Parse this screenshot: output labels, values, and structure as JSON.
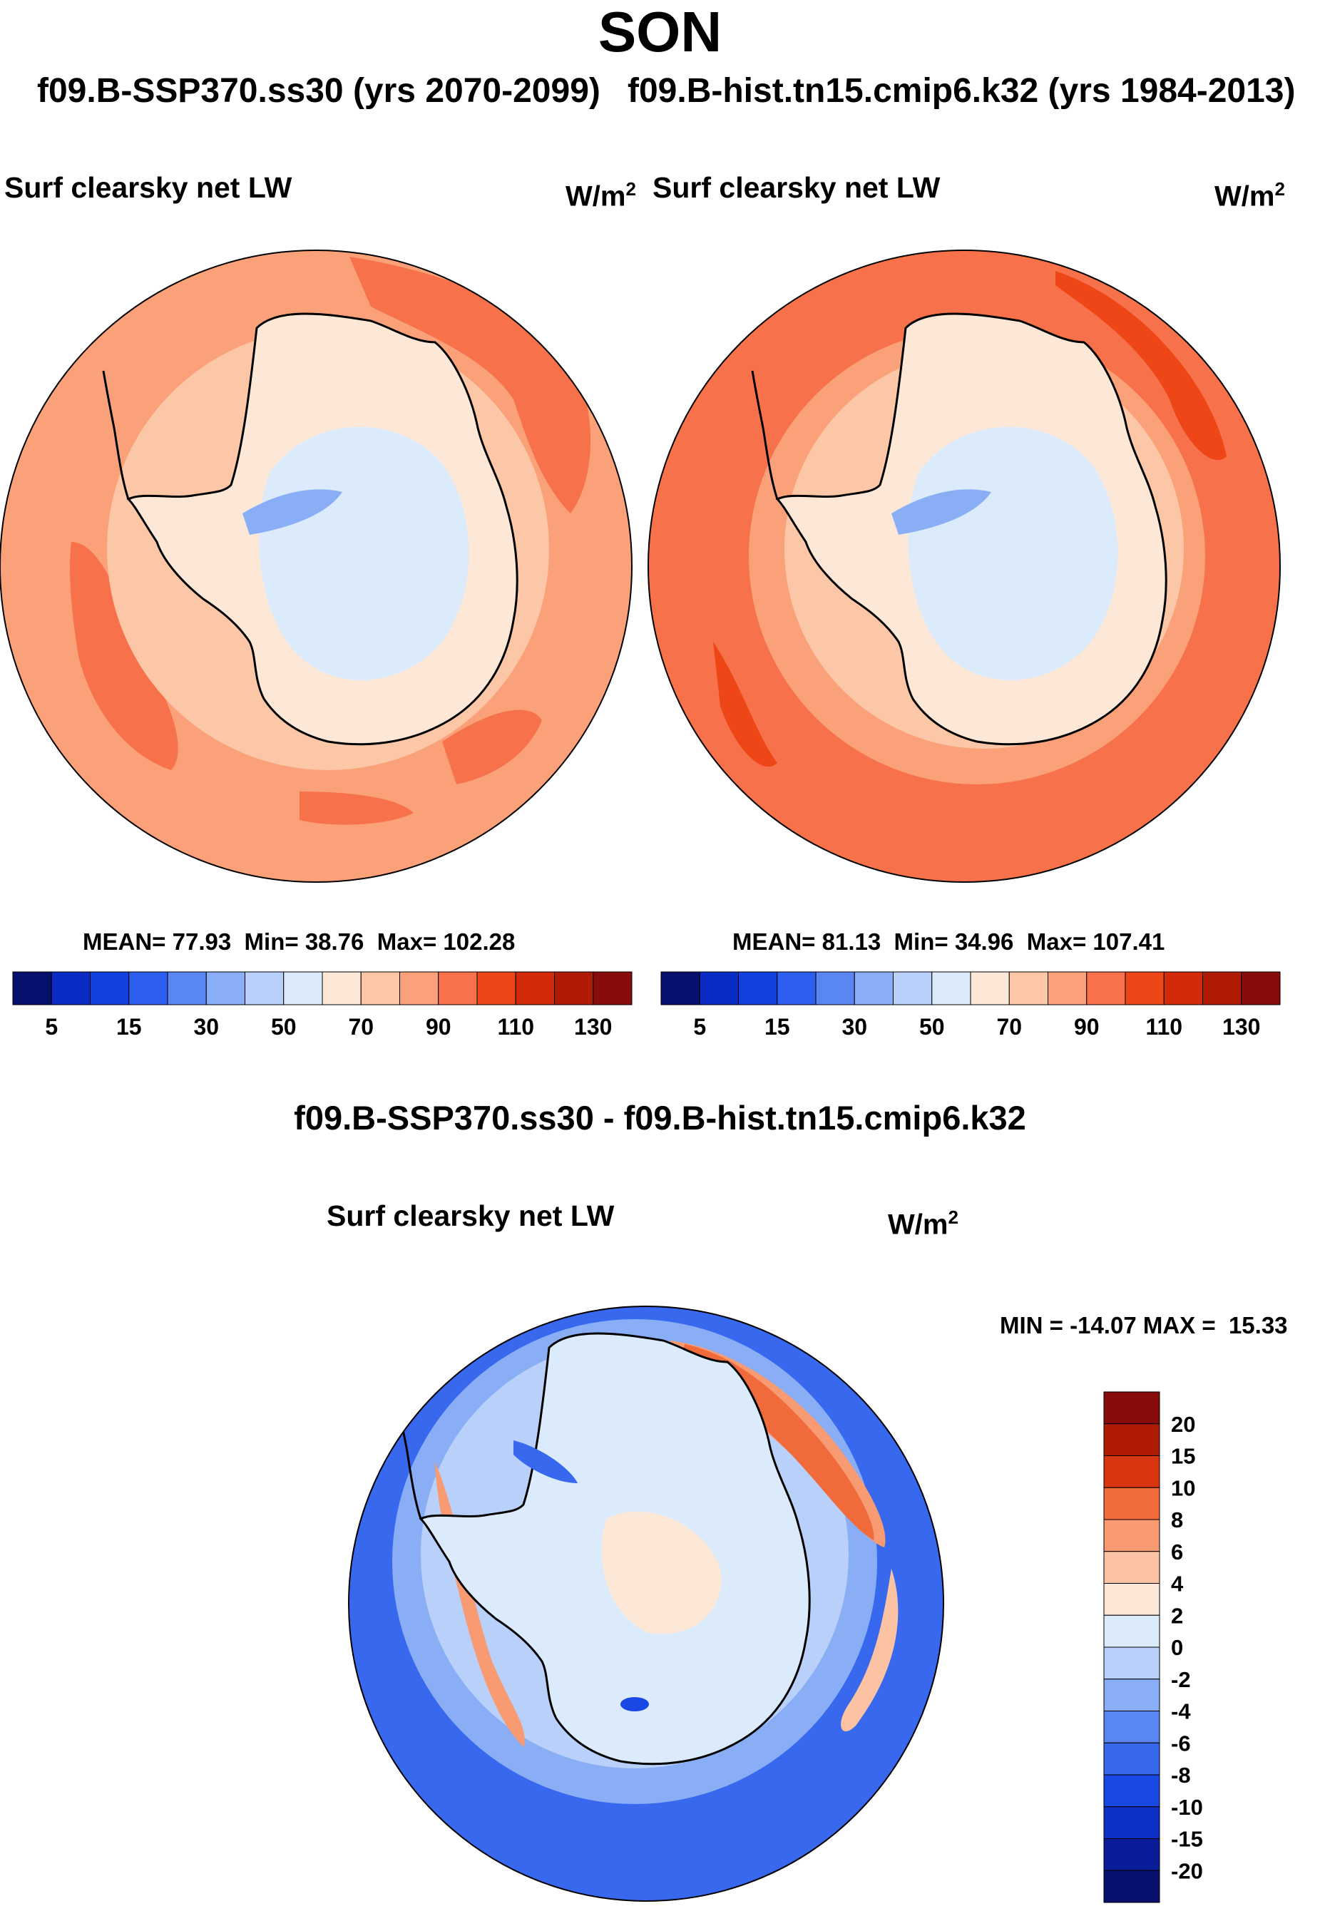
{
  "season": "SON",
  "run_header": {
    "test_case": "f09.B-SSP370.ss30 (yrs 2070-2099)",
    "control_case": "f09.B-hist.tn15.cmip6.k32 (yrs 1984-2013)"
  },
  "panel_left": {
    "variable": "Surf clearsky net LW",
    "units_base": "W/m",
    "units_exp": "2",
    "stats": {
      "mean_label": "MEAN=",
      "mean": "77.93",
      "min_label": "Min=",
      "min": "38.76",
      "max_label": "Max=",
      "max": "102.28"
    }
  },
  "panel_right": {
    "variable": "Surf clearsky net LW",
    "units_base": "W/m",
    "units_exp": "2",
    "stats": {
      "mean_label": "MEAN=",
      "mean": "81.13",
      "min_label": "Min=",
      "min": "34.96",
      "max_label": "Max=",
      "max": "107.41"
    }
  },
  "colorbar_abs": {
    "colors": [
      "#08106e",
      "#0a2ac4",
      "#1240e0",
      "#2e5ef0",
      "#5a86f2",
      "#8aaef5",
      "#b8d0fa",
      "#dcebfc",
      "#fde8d8",
      "#fcc7a6",
      "#fba17a",
      "#f7724a",
      "#ee4616",
      "#d32a0a",
      "#b01b06",
      "#880c0c"
    ],
    "labels": [
      "5",
      "15",
      "30",
      "50",
      "70",
      "90",
      "110",
      "130"
    ]
  },
  "difference": {
    "title": "f09.B-SSP370.ss30 - f09.B-hist.tn15.cmip6.k32",
    "variable": "Surf clearsky net LW",
    "units_base": "W/m",
    "units_exp": "2",
    "minmax": "MIN = -14.07 MAX =  15.33"
  },
  "colorbar_diff": {
    "colors": [
      "#880c0c",
      "#b01b06",
      "#d93510",
      "#f06a3c",
      "#f89a72",
      "#fbc2a4",
      "#fde8d8",
      "#dcebfc",
      "#b8d0fa",
      "#8aaef5",
      "#5a86f2",
      "#3868ee",
      "#1a48e4",
      "#0e30c6",
      "#0a1c98",
      "#08106e"
    ],
    "labels": [
      "20",
      "15",
      "10",
      "8",
      "6",
      "4",
      "2",
      "0",
      "-2",
      "-4",
      "-6",
      "-8",
      "-10",
      "-15",
      "-20"
    ]
  }
}
